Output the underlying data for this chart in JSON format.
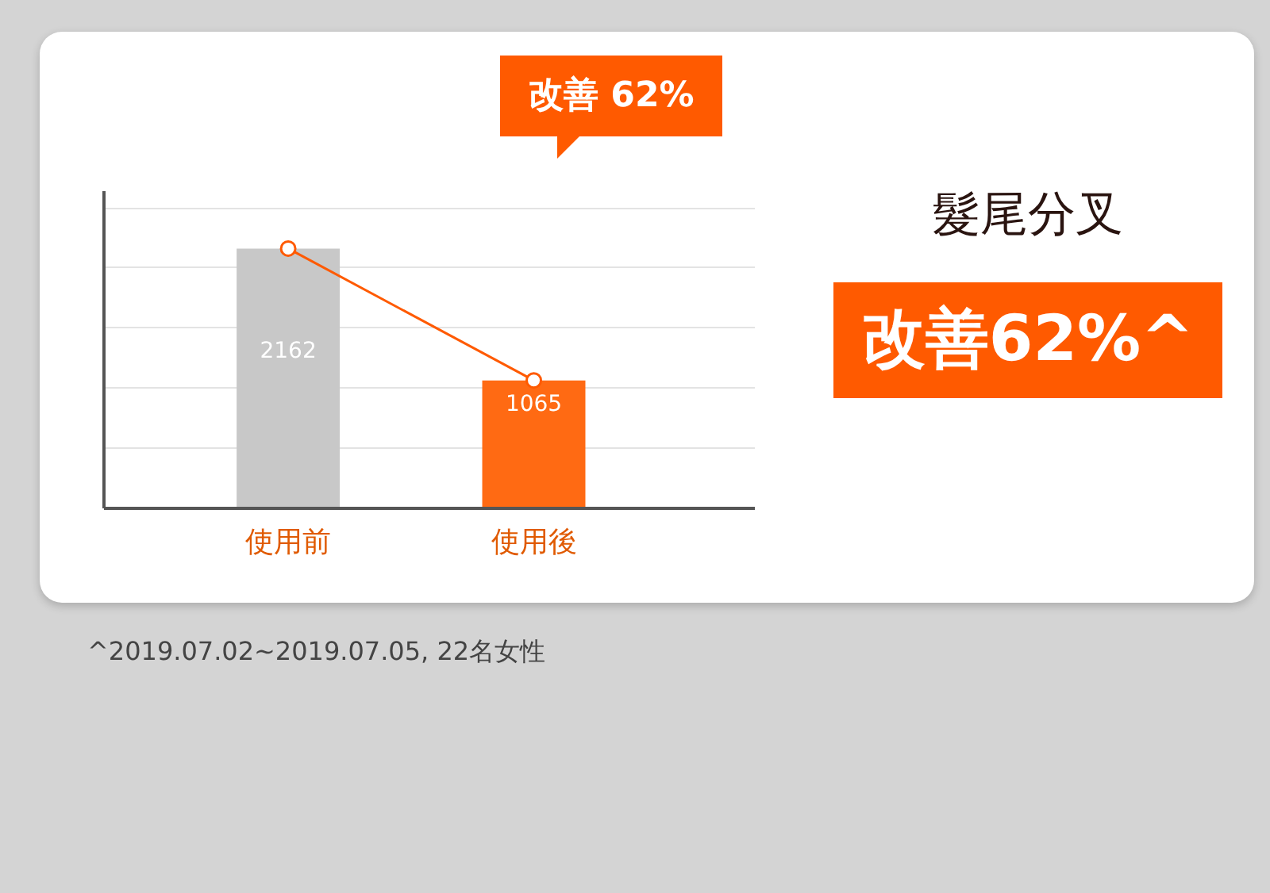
{
  "chart_data": {
    "type": "bar",
    "title": "髮尾分叉",
    "categories": [
      "使用前",
      "使用後"
    ],
    "series": [
      {
        "type": "bar",
        "colors": [
          "#c8c8c8",
          "#ff6a13"
        ],
        "values": [
          2162,
          1065
        ],
        "value_labels": [
          "2162",
          "1065"
        ]
      },
      {
        "type": "line",
        "color": "#ff5a00",
        "values": [
          2162,
          1065
        ],
        "marker": "circle"
      }
    ],
    "ylim": [
      0,
      2640
    ],
    "yticks": [
      {
        "value": 500,
        "label": null
      },
      {
        "value": 1000,
        "label": null
      },
      {
        "value": 1500,
        "label": null
      },
      {
        "value": 2000,
        "label": null
      },
      {
        "value": 2500,
        "label": null
      }
    ],
    "grid": "y",
    "tick_labels": "x",
    "annotations": [
      "改善 62%",
      "改善62%^",
      "^2019.07.02~2019.07.05, 22名女性"
    ]
  }
}
